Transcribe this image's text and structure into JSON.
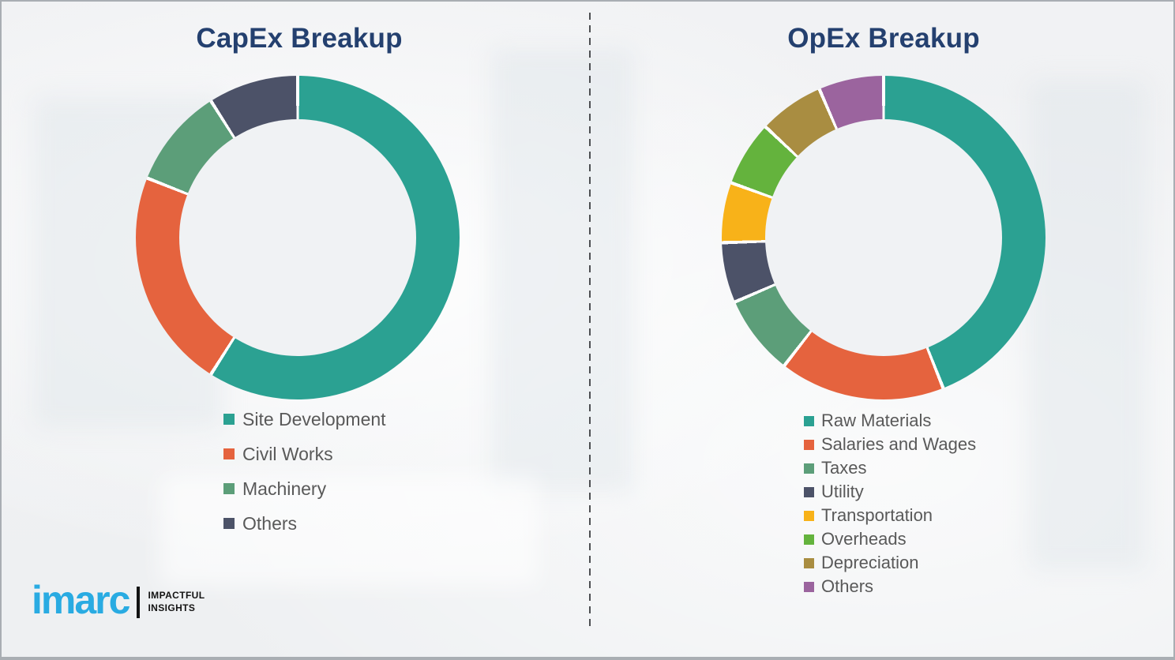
{
  "page": {
    "background_color": "#f1f2f4",
    "title_color": "#24406F",
    "legend_text_color": "#595959",
    "segment_gap_color": "#ffffff"
  },
  "divider": {
    "style": "vertical-dashed",
    "color": "#4d4f52"
  },
  "logo": {
    "brand": "imarc",
    "brand_color": "#29ABE2",
    "tagline_line1": "IMPACTFUL",
    "tagline_line2": "INSIGHTS"
  },
  "chart_data": [
    {
      "type": "pie",
      "subtype": "donut",
      "title": "CapEx Breakup",
      "legend_position": "below-left",
      "categories": [
        "Site Development",
        "Civil Works",
        "Machinery",
        "Others"
      ],
      "values": [
        59,
        22,
        10,
        9
      ],
      "colors": [
        "#2BA192",
        "#E5633E",
        "#5C9E79",
        "#4C5268"
      ],
      "start_angle_deg": 0,
      "direction": "clockwise"
    },
    {
      "type": "pie",
      "subtype": "donut",
      "title": "OpEx Breakup",
      "legend_position": "below-left",
      "categories": [
        "Raw Materials",
        "Salaries and Wages",
        "Taxes",
        "Utility",
        "Transportation",
        "Overheads",
        "Depreciation",
        "Others"
      ],
      "values": [
        44,
        16.5,
        8,
        6,
        6,
        6.5,
        6.5,
        6.5
      ],
      "colors": [
        "#2BA192",
        "#E5633E",
        "#5C9E79",
        "#4C5268",
        "#F8B219",
        "#64B33D",
        "#A98D41",
        "#9B649E"
      ],
      "start_angle_deg": 0,
      "direction": "clockwise"
    }
  ]
}
